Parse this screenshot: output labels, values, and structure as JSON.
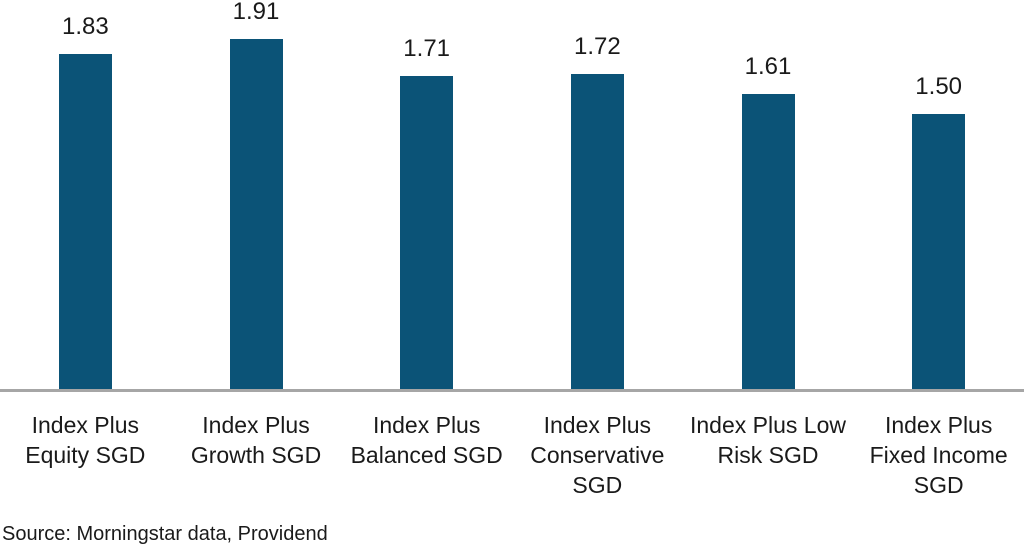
{
  "chart_data": {
    "type": "bar",
    "categories": [
      "Index Plus\nEquity SGD",
      "Index Plus\nGrowth SGD",
      "Index Plus\nBalanced SGD",
      "Index Plus\nConservative\nSGD",
      "Index Plus Low\nRisk SGD",
      "Index Plus\nFixed Income\nSGD"
    ],
    "values": [
      1.83,
      1.91,
      1.71,
      1.72,
      1.61,
      1.5
    ],
    "value_labels": [
      "1.83",
      "1.91",
      "1.71",
      "1.72",
      "1.61",
      "1.50"
    ],
    "title": "",
    "xlabel": "",
    "ylabel": "",
    "ylim": [
      0,
      2.1
    ],
    "grid": false,
    "legend": false,
    "bar_color": "#0B5377",
    "axis_color": "#A6A6A6",
    "text_color": "#1A1A1A"
  },
  "footer": {
    "source_note": "Source: Morningstar data, Providend"
  }
}
